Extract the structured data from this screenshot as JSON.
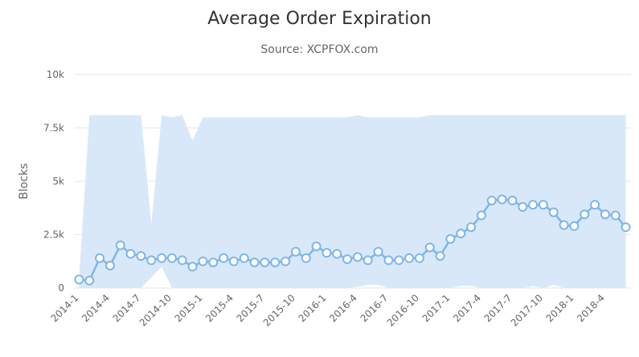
{
  "chart_data": {
    "type": "line",
    "title": "Average Order Expiration",
    "subtitle": "Source: XCPFOX.com",
    "xlabel": "",
    "ylabel": "Blocks",
    "ylim": [
      0,
      10000
    ],
    "yticks": [
      "0",
      "2.5k",
      "5k",
      "7.5k",
      "10k"
    ],
    "ytick_values": [
      0,
      2500,
      5000,
      7500,
      10000
    ],
    "x_tick_labels": [
      "2014-1",
      "2014-4",
      "2014-7",
      "2014-10",
      "2015-1",
      "2015-4",
      "2015-7",
      "2015-10",
      "2016-1",
      "2016-4",
      "2016-7",
      "2016-10",
      "2017-1",
      "2017-4",
      "2017-7",
      "2017-10",
      "2018-1",
      "2018-4"
    ],
    "categories": [
      "2014-1",
      "2014-2",
      "2014-3",
      "2014-4",
      "2014-5",
      "2014-6",
      "2014-7",
      "2014-8",
      "2014-9",
      "2014-10",
      "2014-11",
      "2014-12",
      "2015-1",
      "2015-2",
      "2015-3",
      "2015-4",
      "2015-5",
      "2015-6",
      "2015-7",
      "2015-8",
      "2015-9",
      "2015-10",
      "2015-11",
      "2015-12",
      "2016-1",
      "2016-2",
      "2016-3",
      "2016-4",
      "2016-5",
      "2016-6",
      "2016-7",
      "2016-8",
      "2016-9",
      "2016-10",
      "2016-11",
      "2016-12",
      "2017-1",
      "2017-2",
      "2017-3",
      "2017-4",
      "2017-5",
      "2017-6",
      "2017-7",
      "2017-8",
      "2017-9",
      "2017-10",
      "2017-11",
      "2017-12",
      "2018-1",
      "2018-2",
      "2018-3",
      "2018-4",
      "2018-5",
      "2018-6"
    ],
    "series": [
      {
        "name": "",
        "values": [
          400,
          350,
          1400,
          1050,
          2000,
          1600,
          1500,
          1300,
          1400,
          1400,
          1300,
          1000,
          1250,
          1200,
          1400,
          1250,
          1400,
          1200,
          1200,
          1200,
          1250,
          1700,
          1400,
          1950,
          1650,
          1600,
          1350,
          1450,
          1300,
          1700,
          1300,
          1300,
          1400,
          1400,
          1900,
          1500,
          2300,
          2550,
          2850,
          3400,
          4100,
          4150,
          4100,
          3800,
          3900,
          3900,
          3550,
          2950,
          2900,
          3450,
          3900,
          3450,
          3400,
          2850
        ]
      }
    ],
    "range_series": {
      "low": [
        0,
        0,
        0,
        0,
        0,
        0,
        0,
        500,
        1000,
        0,
        0,
        0,
        0,
        0,
        0,
        0,
        0,
        0,
        0,
        0,
        0,
        0,
        0,
        0,
        0,
        0,
        0,
        50,
        150,
        150,
        0,
        0,
        0,
        0,
        0,
        0,
        0,
        100,
        100,
        0,
        0,
        0,
        0,
        0,
        100,
        0,
        150,
        0,
        0,
        0,
        0,
        0,
        0,
        0
      ],
      "high": [
        500,
        8100,
        8100,
        8100,
        8100,
        8100,
        8100,
        3000,
        8100,
        8000,
        8100,
        6900,
        8000,
        8000,
        8000,
        8000,
        8000,
        8000,
        8000,
        8000,
        8000,
        8000,
        8000,
        8000,
        8000,
        8000,
        8000,
        8100,
        8000,
        8000,
        8000,
        8000,
        8000,
        8000,
        8100,
        8100,
        8100,
        8100,
        8100,
        8100,
        8100,
        8100,
        8100,
        8100,
        8100,
        8100,
        8100,
        8100,
        8100,
        8100,
        8100,
        8100,
        8100,
        8100
      ]
    },
    "colors": {
      "line": "#7cb5ec",
      "range_fill": "#d9e8f8",
      "marker_fill": "#ffffff",
      "grid": "#e6e6e6"
    },
    "grid": true,
    "legend": "none"
  }
}
